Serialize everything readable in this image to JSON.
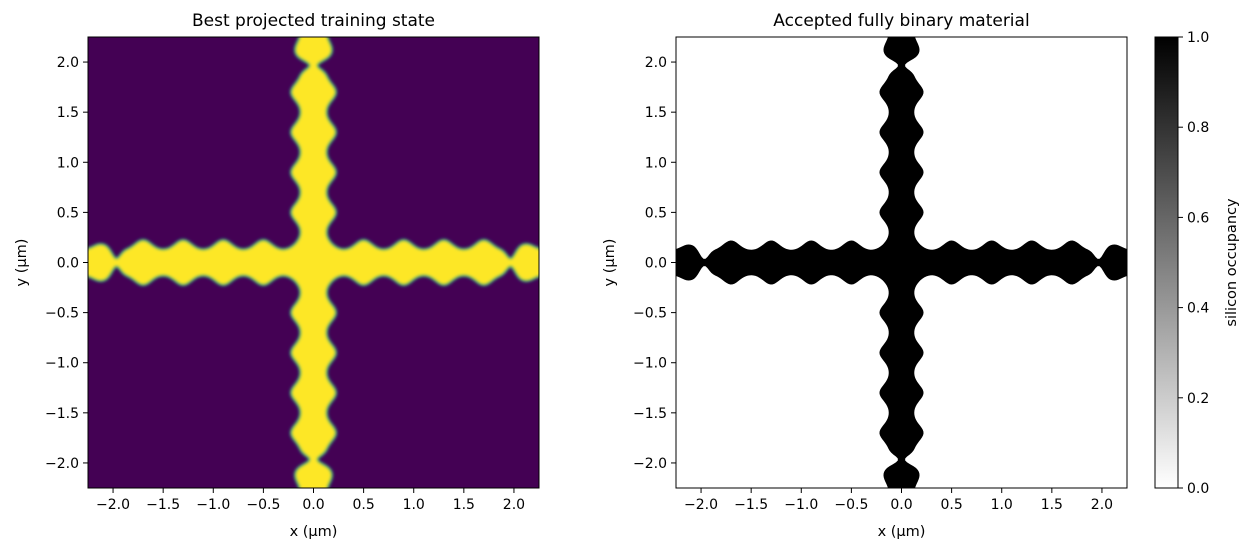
{
  "chart_data": [
    {
      "type": "heatmap",
      "title": "Best projected training state",
      "xlabel": "x (µm)",
      "ylabel": "y (µm)",
      "xlim": [
        -2.25,
        2.25
      ],
      "ylim": [
        -2.25,
        2.25
      ],
      "xticks": [
        -2.0,
        -1.5,
        -1.0,
        -0.5,
        0.0,
        0.5,
        1.0,
        1.5,
        2.0
      ],
      "xtick_labels": [
        "−2.0",
        "−1.5",
        "−1.0",
        "−0.5",
        "0.0",
        "0.5",
        "1.0",
        "1.5",
        "2.0"
      ],
      "yticks": [
        2.0,
        1.5,
        1.0,
        0.5,
        0.0,
        -0.5,
        -1.0,
        -1.5,
        -2.0
      ],
      "ytick_labels": [
        "2.0",
        "1.5",
        "1.0",
        "0.5",
        "0.0",
        "−0.5",
        "−1.0",
        "−1.5",
        "−2.0"
      ],
      "colormap": "viridis",
      "background_color": "#440154",
      "structure_color": "#fde725",
      "edge_color": "#21918c",
      "structure": "cross-shaped waveguide crossing with periodic widenings along both arms"
    },
    {
      "type": "heatmap",
      "title": "Accepted fully binary material",
      "xlabel": "x (µm)",
      "ylabel": "y (µm)",
      "xlim": [
        -2.25,
        2.25
      ],
      "ylim": [
        -2.25,
        2.25
      ],
      "xticks": [
        -2.0,
        -1.5,
        -1.0,
        -0.5,
        0.0,
        0.5,
        1.0,
        1.5,
        2.0
      ],
      "xtick_labels": [
        "−2.0",
        "−1.5",
        "−1.0",
        "−0.5",
        "0.0",
        "0.5",
        "1.0",
        "1.5",
        "2.0"
      ],
      "yticks": [
        2.0,
        1.5,
        1.0,
        0.5,
        0.0,
        -0.5,
        -1.0,
        -1.5,
        -2.0
      ],
      "ytick_labels": [
        "2.0",
        "1.5",
        "1.0",
        "0.5",
        "0.0",
        "−0.5",
        "−1.0",
        "−1.5",
        "−2.0"
      ],
      "colormap": "gray_r",
      "background_color": "#ffffff",
      "structure_color": "#000000",
      "colorbar": {
        "label": "silicon occupancy",
        "range": [
          0.0,
          1.0
        ],
        "ticks": [
          1.0,
          0.8,
          0.6,
          0.4,
          0.2,
          0.0
        ],
        "tick_labels": [
          "1.0",
          "0.8",
          "0.6",
          "0.4",
          "0.2",
          "0.0"
        ]
      }
    }
  ],
  "geometry_model": {
    "comment_free_params": true,
    "half_width_base": 0.12,
    "center_half_width": 0.22,
    "center_extent": 0.3,
    "lobes": [
      {
        "d": 0.1,
        "amp": 0.11
      },
      {
        "d": 0.5,
        "amp": 0.1
      },
      {
        "d": 0.9,
        "amp": 0.1
      },
      {
        "d": 1.3,
        "amp": 0.1
      },
      {
        "d": 1.7,
        "amp": 0.1
      },
      {
        "d": 2.12,
        "amp": 0.06
      }
    ],
    "necks": [
      {
        "d": 1.97,
        "dip": 0.095
      }
    ]
  }
}
